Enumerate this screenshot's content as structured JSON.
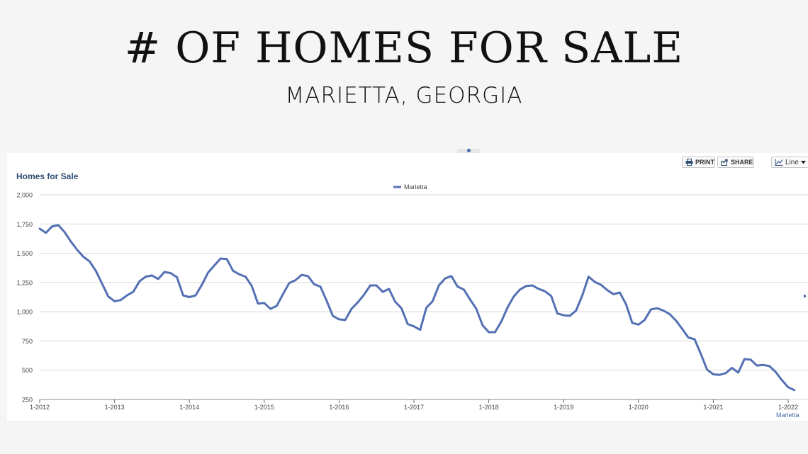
{
  "header": {
    "title": "# OF HOMES FOR SALE",
    "subtitle": "MARIETTA, GEORGIA"
  },
  "toolbar": {
    "print_label": "PRINT",
    "share_label": "SHARE",
    "chart_type_label": "Line"
  },
  "colors": {
    "series": "#5470b4",
    "grid": "#d9d9d9",
    "heading": "#2c4a6e"
  },
  "chart_data": {
    "type": "line",
    "title": "Homes for Sale",
    "xlabel": "",
    "ylabel": "",
    "ylim": [
      250,
      2000
    ],
    "yticks": [
      250,
      500,
      750,
      1000,
      1250,
      1500,
      1750,
      2000
    ],
    "ytick_labels": [
      "250",
      "500",
      "750",
      "1,000",
      "1,250",
      "1,500",
      "1,750",
      "2,000"
    ],
    "xticks": [
      "1-2012",
      "1-2013",
      "1-2014",
      "1-2015",
      "1-2016",
      "1-2017",
      "1-2018",
      "1-2019",
      "1-2020",
      "1-2021",
      "1-2022"
    ],
    "grid": true,
    "legend_position": "top-center",
    "end_label": "Marietta",
    "series": [
      {
        "name": "Marietta",
        "start": "1-2012",
        "frequency": "monthly",
        "values": [
          1710,
          1675,
          1730,
          1740,
          1680,
          1600,
          1530,
          1470,
          1430,
          1350,
          1240,
          1130,
          1090,
          1100,
          1140,
          1170,
          1260,
          1300,
          1310,
          1280,
          1340,
          1330,
          1295,
          1140,
          1125,
          1140,
          1230,
          1335,
          1395,
          1455,
          1450,
          1350,
          1320,
          1300,
          1220,
          1070,
          1075,
          1025,
          1050,
          1150,
          1245,
          1270,
          1315,
          1305,
          1235,
          1215,
          1095,
          965,
          935,
          930,
          1025,
          1080,
          1145,
          1225,
          1225,
          1170,
          1195,
          1085,
          1030,
          895,
          875,
          845,
          1035,
          1090,
          1225,
          1285,
          1305,
          1215,
          1190,
          1105,
          1025,
          885,
          825,
          825,
          915,
          1035,
          1130,
          1190,
          1220,
          1225,
          1195,
          1175,
          1135,
          985,
          970,
          965,
          1010,
          1140,
          1300,
          1255,
          1230,
          1185,
          1150,
          1165,
          1065,
          905,
          890,
          930,
          1020,
          1030,
          1010,
          980,
          925,
          855,
          780,
          765,
          640,
          505,
          465,
          460,
          475,
          520,
          480,
          595,
          590,
          540,
          545,
          535,
          485,
          415,
          355,
          330
        ]
      }
    ]
  }
}
